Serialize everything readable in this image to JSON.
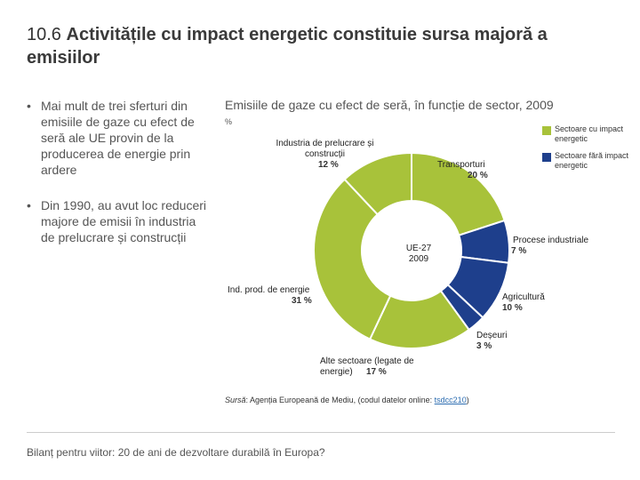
{
  "slide": {
    "title_number": "10.6",
    "title_text": "Activitățile cu impact energetic constituie sursa majoră a emisiilor",
    "bullets": [
      "Mai mult de trei sferturi din emisiile de gaze cu efect de seră ale UE provin de la producerea de energie prin ardere",
      "Din 1990, au avut loc reduceri majore de emisii în industria de prelucrare și construcții"
    ],
    "source_label": "Sursă",
    "source_text": ": Agenția Europeană de Mediu, (codul datelor online: ",
    "source_link": "tsdcc210",
    "source_end": ")",
    "footer": "Bilanț pentru viitor: 20 de ani de dezvoltare durabilă în Europa?"
  },
  "chart_data": {
    "type": "pie",
    "title": "Emisiile de gaze cu efect de seră, în funcție de sector, 2009",
    "unit": "%",
    "center_label": [
      "UE-27",
      "2009"
    ],
    "legend": [
      {
        "name": "Sectoare cu impact energetic",
        "color": "#a8c23a"
      },
      {
        "name": "Sectoare fără impact energetic",
        "color": "#1e3f8c"
      }
    ],
    "slices": [
      {
        "label": "Transporturi",
        "value": 20,
        "group": "energetic",
        "pct_text": "20 %"
      },
      {
        "label": "Procese industriale",
        "value": 7,
        "group": "non-energetic",
        "pct_text": "7 %"
      },
      {
        "label": "Agricultură",
        "value": 10,
        "group": "non-energetic",
        "pct_text": "10 %"
      },
      {
        "label": "Deșeuri",
        "value": 3,
        "group": "non-energetic",
        "pct_text": "3 %"
      },
      {
        "label": "Alte sectoare (legate de energie)",
        "value": 17,
        "group": "energetic",
        "pct_text": "17 %"
      },
      {
        "label": "Ind. prod. de energie",
        "value": 31,
        "group": "energetic",
        "pct_text": "31 %"
      },
      {
        "label": "Industria de prelucrare și construcții",
        "value": 12,
        "group": "energetic",
        "pct_text": "12 %"
      }
    ]
  }
}
